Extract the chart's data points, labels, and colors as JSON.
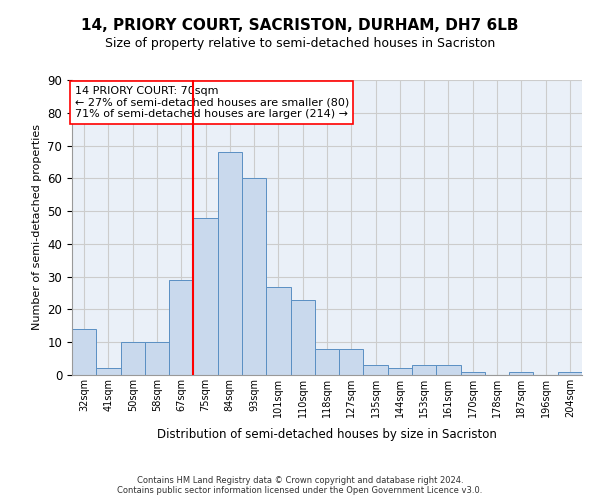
{
  "title": "14, PRIORY COURT, SACRISTON, DURHAM, DH7 6LB",
  "subtitle": "Size of property relative to semi-detached houses in Sacriston",
  "xlabel": "Distribution of semi-detached houses by size in Sacriston",
  "ylabel": "Number of semi-detached properties",
  "footer_line1": "Contains HM Land Registry data © Crown copyright and database right 2024.",
  "footer_line2": "Contains public sector information licensed under the Open Government Licence v3.0.",
  "categories": [
    "32sqm",
    "41sqm",
    "50sqm",
    "58sqm",
    "67sqm",
    "75sqm",
    "84sqm",
    "93sqm",
    "101sqm",
    "110sqm",
    "118sqm",
    "127sqm",
    "135sqm",
    "144sqm",
    "153sqm",
    "161sqm",
    "170sqm",
    "178sqm",
    "187sqm",
    "196sqm",
    "204sqm"
  ],
  "values": [
    14,
    2,
    10,
    10,
    29,
    48,
    68,
    60,
    27,
    23,
    8,
    8,
    3,
    2,
    3,
    3,
    1,
    0,
    1,
    0,
    1
  ],
  "bar_color": "#c9d9ed",
  "bar_edge_color": "#5a8fc3",
  "property_label": "14 PRIORY COURT: 70sqm",
  "pct_smaller": 27,
  "n_smaller": 80,
  "pct_larger": 71,
  "n_larger": 214,
  "vline_color": "red",
  "annotation_box_edge": "red",
  "ylim": [
    0,
    90
  ],
  "yticks": [
    0,
    10,
    20,
    30,
    40,
    50,
    60,
    70,
    80,
    90
  ],
  "grid_color": "#cccccc",
  "bg_color": "#eaf0f8",
  "title_fontsize": 11,
  "subtitle_fontsize": 9,
  "annotation_fontsize": 8,
  "ylabel_fontsize": 8,
  "xlabel_fontsize": 8.5,
  "footer_fontsize": 6,
  "vline_x_index": 4.5
}
